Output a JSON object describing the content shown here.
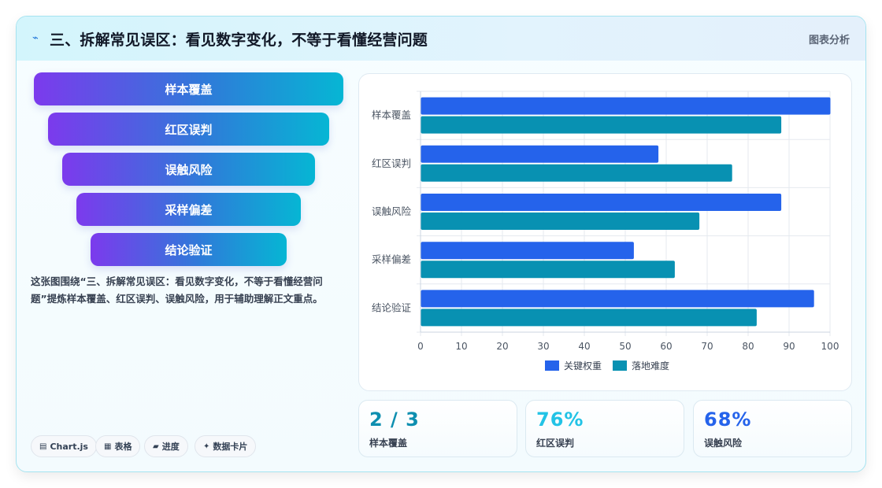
{
  "header": {
    "icon": "lightning-icon",
    "title": "三、拆解常见误区：看见数字变化，不等于看懂经营问题",
    "tag": "图表分析"
  },
  "funnel": {
    "items": [
      "样本覆盖",
      "红区误判",
      "误触风险",
      "采样偏差",
      "结论验证"
    ]
  },
  "description": "这张图围绕“三、拆解常见误区：看见数字变化，不等于看懂经营问题”提炼样本覆盖、红区误判、误触风险，用于辅助理解正文重点。",
  "chips": [
    {
      "icon": "chart-icon",
      "glyph": "▤",
      "label": "Chart.js"
    },
    {
      "icon": "table-icon",
      "glyph": "▦",
      "label": "表格"
    },
    {
      "icon": "progress-icon",
      "glyph": "▰",
      "label": "进度"
    },
    {
      "icon": "sparkle-icon",
      "glyph": "✦",
      "label": "数据卡片"
    }
  ],
  "kpis": [
    {
      "value": "2 / 3",
      "label": "样本覆盖",
      "color": "#0e8fb0"
    },
    {
      "value": "76%",
      "label": "红区误判",
      "color": "#22c3e6"
    },
    {
      "value": "68%",
      "label": "误触风险",
      "color": "#2563eb"
    }
  ],
  "chart_data": {
    "type": "bar",
    "orientation": "horizontal",
    "categories": [
      "样本覆盖",
      "红区误判",
      "误触风险",
      "采样偏差",
      "结论验证"
    ],
    "series": [
      {
        "name": "关键权重",
        "values": [
          100,
          58,
          88,
          52,
          96
        ],
        "color": "#2563eb"
      },
      {
        "name": "落地难度",
        "values": [
          88,
          76,
          68,
          62,
          82
        ],
        "color": "#0891b2"
      }
    ],
    "xlim": [
      0,
      100
    ],
    "xticks": [
      "0",
      "10",
      "20",
      "30",
      "40",
      "50",
      "60",
      "70",
      "80",
      "90",
      "100"
    ],
    "grid": true,
    "legend": "bottom"
  }
}
